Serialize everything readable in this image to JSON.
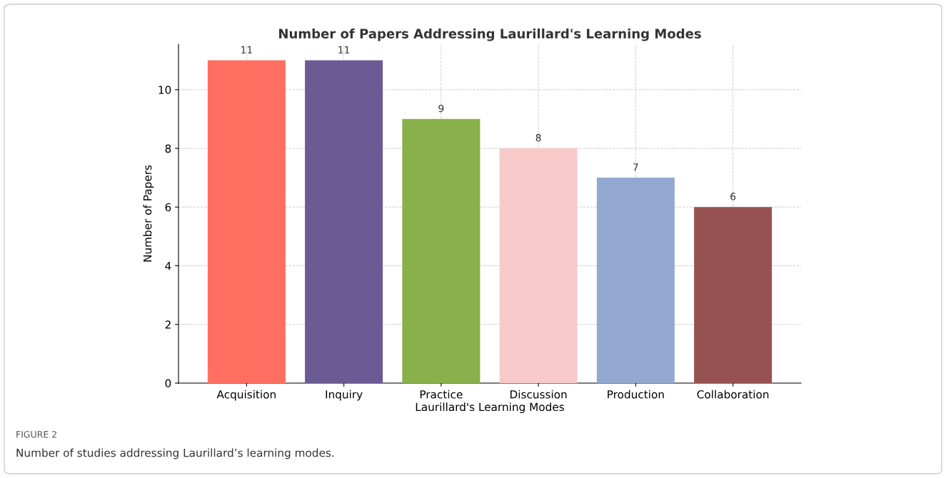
{
  "chart_data": {
    "type": "bar",
    "title": "Number of Papers Addressing Laurillard's Learning Modes",
    "xlabel": "Laurillard's Learning Modes",
    "ylabel": "Number of Papers",
    "categories": [
      "Acquisition",
      "Inquiry",
      "Practice",
      "Discussion",
      "Production",
      "Collaboration"
    ],
    "values": [
      11,
      11,
      9,
      8,
      7,
      6
    ],
    "colors": [
      "#ff6f61",
      "#6b5b95",
      "#88b04b",
      "#f7cac9",
      "#92a8d1",
      "#955251"
    ],
    "ylim": [
      0,
      11.55
    ],
    "yticks": [
      0,
      2,
      4,
      6,
      8,
      10
    ],
    "grid": true,
    "data_labels": true,
    "annotations": [
      "FIGURE 2",
      "Number of studies addressing Laurillard’s learning modes."
    ]
  }
}
